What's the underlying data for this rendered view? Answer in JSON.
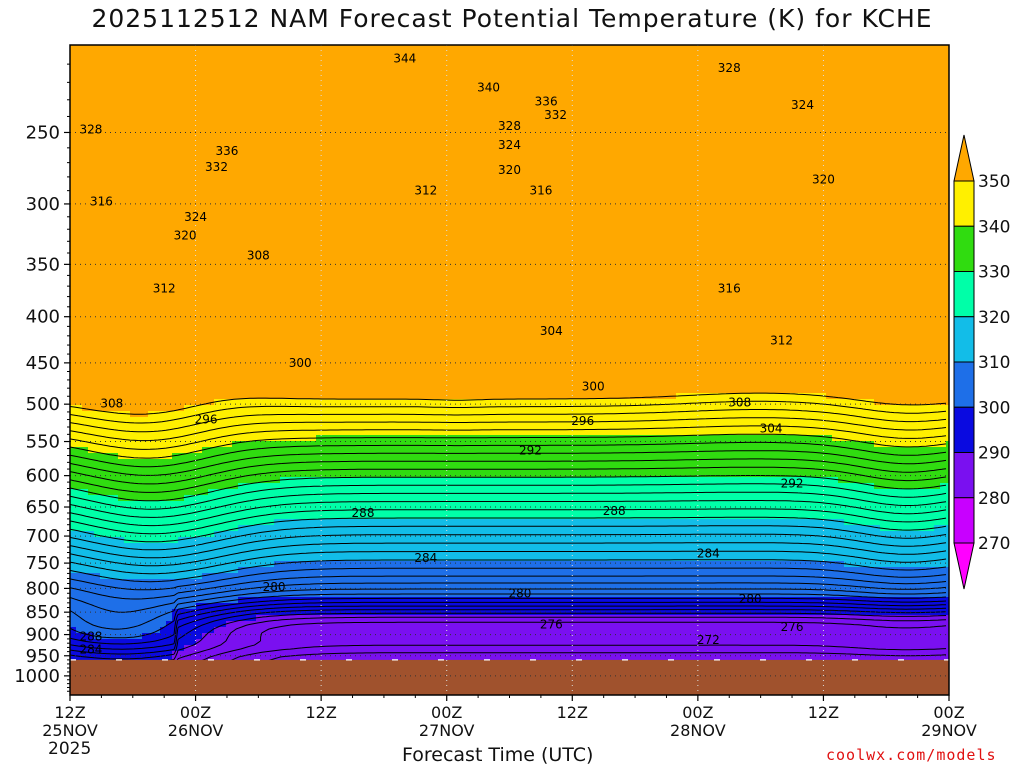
{
  "title": "2025112512 NAM Forecast Potential Temperature (K) for KCHE",
  "credit": "coolwx.com/models",
  "chart_data": {
    "type": "heatmap",
    "title": "2025112512 NAM Forecast Potential Temperature (K) for KCHE",
    "xlabel": "Forecast Time (UTC)",
    "x_year": "2025",
    "x_ticks": [
      {
        "hour": 0,
        "time": "12Z",
        "date": "25NOV"
      },
      {
        "hour": 12,
        "time": "00Z",
        "date": "26NOV"
      },
      {
        "hour": 24,
        "time": "12Z",
        "date": ""
      },
      {
        "hour": 36,
        "time": "00Z",
        "date": "27NOV"
      },
      {
        "hour": 48,
        "time": "12Z",
        "date": ""
      },
      {
        "hour": 60,
        "time": "00Z",
        "date": "28NOV"
      },
      {
        "hour": 72,
        "time": "12Z",
        "date": ""
      },
      {
        "hour": 84,
        "time": "00Z",
        "date": "29NOV"
      }
    ],
    "y_ticks": [
      250,
      300,
      350,
      400,
      450,
      500,
      550,
      600,
      650,
      700,
      750,
      800,
      850,
      900,
      950,
      1000
    ],
    "yrange_hPa": [
      200,
      1050
    ],
    "xrange_hours": [
      0,
      84
    ],
    "ground_pressure_hPa": 960,
    "grid": "dotted",
    "colorbar": {
      "levels": [
        270,
        280,
        290,
        300,
        310,
        320,
        330,
        340,
        350
      ],
      "colors": [
        "#ff00ff",
        "#c800ff",
        "#7a10f0",
        "#0a0ae0",
        "#1e6fe8",
        "#12bde8",
        "#00ffa8",
        "#30dc10",
        "#fff000",
        "#ffa800"
      ]
    },
    "contour_labels": [
      {
        "value": 344,
        "hour": 32,
        "p": 207
      },
      {
        "value": 340,
        "hour": 40,
        "p": 223
      },
      {
        "value": 336,
        "hour": 45.5,
        "p": 231
      },
      {
        "value": 332,
        "hour": 46.4,
        "p": 239
      },
      {
        "value": 328,
        "hour": 63,
        "p": 212
      },
      {
        "value": 324,
        "hour": 70,
        "p": 233
      },
      {
        "value": 328,
        "hour": 2,
        "p": 248
      },
      {
        "value": 328,
        "hour": 42,
        "p": 246
      },
      {
        "value": 324,
        "hour": 42,
        "p": 258
      },
      {
        "value": 320,
        "hour": 42,
        "p": 275
      },
      {
        "value": 316,
        "hour": 45,
        "p": 290
      },
      {
        "value": 312,
        "hour": 34,
        "p": 290
      },
      {
        "value": 336,
        "hour": 15,
        "p": 262
      },
      {
        "value": 332,
        "hour": 14,
        "p": 273
      },
      {
        "value": 324,
        "hour": 12,
        "p": 310
      },
      {
        "value": 320,
        "hour": 11,
        "p": 325
      },
      {
        "value": 316,
        "hour": 3,
        "p": 298
      },
      {
        "value": 312,
        "hour": 9,
        "p": 372
      },
      {
        "value": 308,
        "hour": 18,
        "p": 342
      },
      {
        "value": 320,
        "hour": 72,
        "p": 282
      },
      {
        "value": 316,
        "hour": 63,
        "p": 372
      },
      {
        "value": 312,
        "hour": 68,
        "p": 425
      },
      {
        "value": 304,
        "hour": 46,
        "p": 415
      },
      {
        "value": 300,
        "hour": 22,
        "p": 450
      },
      {
        "value": 300,
        "hour": 50,
        "p": 478
      },
      {
        "value": 296,
        "hour": 13,
        "p": 520
      },
      {
        "value": 296,
        "hour": 49,
        "p": 522
      },
      {
        "value": 292,
        "hour": 44,
        "p": 563
      },
      {
        "value": 308,
        "hour": 4,
        "p": 499
      },
      {
        "value": 308,
        "hour": 64,
        "p": 498
      },
      {
        "value": 304,
        "hour": 67,
        "p": 532
      },
      {
        "value": 292,
        "hour": 69,
        "p": 612
      },
      {
        "value": 288,
        "hour": 28,
        "p": 660
      },
      {
        "value": 288,
        "hour": 52,
        "p": 657
      },
      {
        "value": 284,
        "hour": 34,
        "p": 740
      },
      {
        "value": 284,
        "hour": 61,
        "p": 732
      },
      {
        "value": 280,
        "hour": 19.5,
        "p": 797
      },
      {
        "value": 280,
        "hour": 43,
        "p": 810
      },
      {
        "value": 280,
        "hour": 65,
        "p": 822
      },
      {
        "value": 276,
        "hour": 46,
        "p": 877
      },
      {
        "value": 276,
        "hour": 69,
        "p": 883
      },
      {
        "value": 272,
        "hour": 61,
        "p": 912
      },
      {
        "value": 288,
        "hour": 2,
        "p": 905
      },
      {
        "value": 284,
        "hour": 2,
        "p": 935
      }
    ]
  }
}
